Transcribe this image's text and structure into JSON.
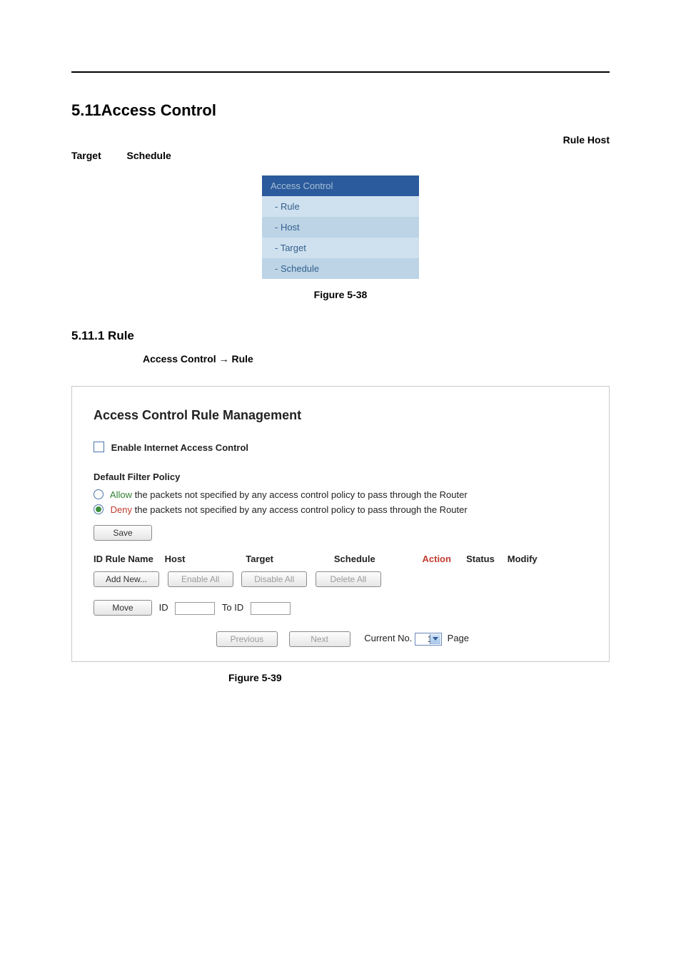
{
  "section": {
    "number_title": "5.11Access Control",
    "meta_right": "Rule  Host",
    "meta_left1": "Target",
    "meta_left2": "Schedule"
  },
  "nav": {
    "header": "Access Control",
    "items": [
      "- Rule",
      "- Host",
      "- Target",
      "- Schedule"
    ],
    "colors": {
      "header_bg": "#2b5b9c",
      "header_fg": "#a8bfd8",
      "row_bg_a": "#cfe1ee",
      "row_bg_b": "#bcd4e6",
      "row_fg": "#345f8f"
    }
  },
  "fig38_caption": "Figure 5-38",
  "subsection": {
    "title": "5.11.1 Rule",
    "path_prefix": "Access Control",
    "arrow": "→",
    "path_suffix": "Rule"
  },
  "panel": {
    "title": "Access Control Rule Management",
    "enable_label": "Enable Internet Access Control",
    "enable_checked": false,
    "policy_title": "Default Filter Policy",
    "allow": {
      "keyword": "Allow",
      "rest": " the packets not specified by any access control policy to pass through the Router",
      "selected": false,
      "kw_color": "#2f7f2f"
    },
    "deny": {
      "keyword": "Deny",
      "rest": " the packets not specified by any access control policy to pass through the Router",
      "selected": true,
      "kw_color": "#c23b2e"
    },
    "save_btn": "Save",
    "headers": {
      "id_rule": "ID Rule Name",
      "host": "Host",
      "target": "Target",
      "schedule": "Schedule",
      "action": "Action",
      "status": "Status",
      "modify": "Modify",
      "action_color": "#c23b2e"
    },
    "buttons": {
      "add_new": "Add New...",
      "enable_all": "Enable All",
      "disable_all": "Disable All",
      "delete_all": "Delete All",
      "move": "Move",
      "id_label": "ID",
      "to_id_label": "To ID",
      "previous": "Previous",
      "next": "Next"
    },
    "pager": {
      "current_label": "Current No.",
      "current_value": "1",
      "page_label": "Page"
    }
  },
  "fig39_caption": "Figure 5-39"
}
